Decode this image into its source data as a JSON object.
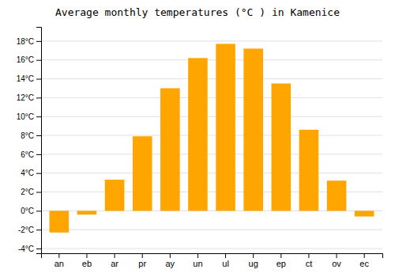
{
  "chart_data": {
    "type": "bar",
    "title": "Average monthly temperatures (°C ) in Kamenice",
    "categories": [
      "an",
      "eb",
      "ar",
      "pr",
      "ay",
      "un",
      "ul",
      "ug",
      "ep",
      "ct",
      "ov",
      "ec"
    ],
    "values": [
      -2.3,
      -0.4,
      3.3,
      7.9,
      13.0,
      16.2,
      17.7,
      17.2,
      13.5,
      8.6,
      3.2,
      -0.6
    ],
    "color": "#FFA500",
    "ylim": [
      -4.5,
      19.5
    ],
    "yticks": [
      {
        "value": -4,
        "label": "-4°C"
      },
      {
        "value": -2,
        "label": "-2°C"
      },
      {
        "value": 0,
        "label": "0°C"
      },
      {
        "value": 2,
        "label": "2°C"
      },
      {
        "value": 4,
        "label": "4°C"
      },
      {
        "value": 6,
        "label": "6°C"
      },
      {
        "value": 8,
        "label": "8°C"
      },
      {
        "value": 10,
        "label": "10°C"
      },
      {
        "value": 12,
        "label": "12°C"
      },
      {
        "value": 14,
        "label": "14°C"
      },
      {
        "value": 16,
        "label": "16°C"
      },
      {
        "value": 18,
        "label": "18°C"
      }
    ],
    "grid": true
  }
}
